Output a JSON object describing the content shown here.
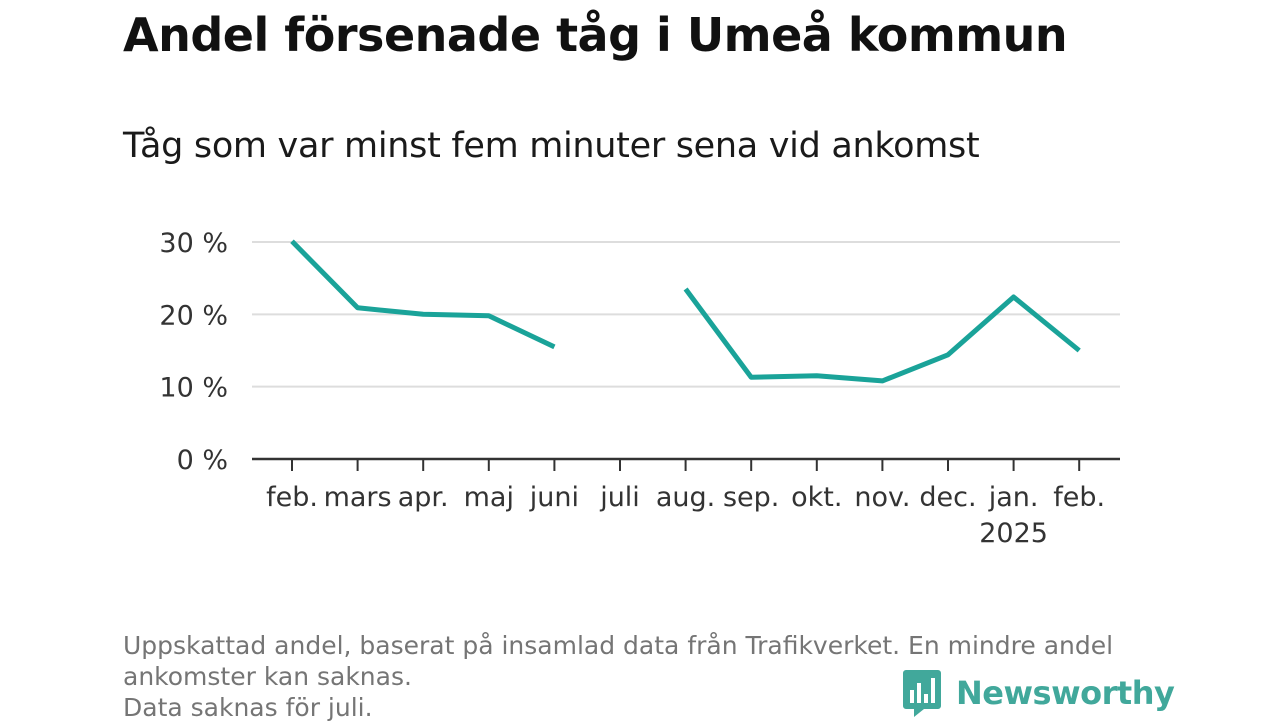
{
  "title": "Andel försenade tåg i Umeå kommun",
  "subtitle": "Tåg som var minst fem minuter sena vid ankomst",
  "footnote": {
    "line1": "Uppskattad andel, baserat på insamlad data från Trafikverket. En mindre andel",
    "line2": "ankomster kan saknas.",
    "line3": "Data saknas för juli."
  },
  "logo": {
    "text": "Newsworthy",
    "icon": "bar-chart-speech-bubble-icon",
    "color": "#41a89b"
  },
  "chart_data": {
    "type": "line",
    "categories": [
      "feb.",
      "mars",
      "apr.",
      "maj",
      "juni",
      "juli",
      "aug.",
      "sep.",
      "okt.",
      "nov.",
      "dec.",
      "jan.",
      "feb."
    ],
    "category_sublabels": [
      "",
      "",
      "",
      "",
      "",
      "",
      "",
      "",
      "",
      "",
      "",
      "2025",
      ""
    ],
    "series": [
      {
        "values": [
          30.1,
          20.9,
          20.0,
          19.8,
          15.5,
          null,
          23.5,
          11.3,
          11.5,
          10.8,
          14.4,
          22.4,
          15.0
        ],
        "color": "#1aa399"
      }
    ],
    "ylim": [
      0,
      30
    ],
    "yticks": [
      0,
      10,
      20,
      30
    ],
    "ytick_labels": [
      "0 %",
      "10 %",
      "20 %",
      "30 %"
    ],
    "xlabel": "",
    "ylabel": "",
    "grid": true
  }
}
